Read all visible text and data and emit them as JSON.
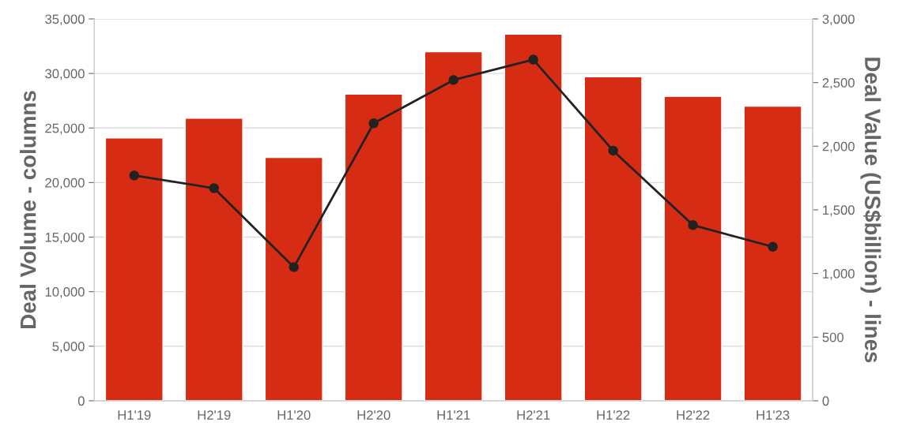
{
  "chart_data": {
    "type": "bar",
    "categories": [
      "H1'19",
      "H2'19",
      "H1'20",
      "H2'20",
      "H1'21",
      "H2'21",
      "H1'22",
      "H2'22",
      "H1'23"
    ],
    "series": [
      {
        "type": "bar",
        "color": "#d62c14",
        "values": [
          24100,
          25900,
          22300,
          28100,
          32000,
          33600,
          29700,
          27900,
          27000
        ]
      },
      {
        "type": "line",
        "axis": "y2",
        "color": "#222222",
        "marker": "circle",
        "line_style": "solid",
        "values": [
          1770,
          1670,
          1050,
          2180,
          2520,
          2680,
          1965,
          1380,
          1210
        ]
      }
    ],
    "ylabel": "Deal Volume - columns",
    "y2label": "Deal Value (US$billion) - lines",
    "ylim": [
      0,
      35000
    ],
    "yticks": [
      {
        "value": 0,
        "label": "0"
      },
      {
        "value": 5000,
        "label": "5,000"
      },
      {
        "value": 10000,
        "label": "10,000"
      },
      {
        "value": 15000,
        "label": "15,000"
      },
      {
        "value": 20000,
        "label": "20,000"
      },
      {
        "value": 25000,
        "label": "25,000"
      },
      {
        "value": 30000,
        "label": "30,000"
      },
      {
        "value": 35000,
        "label": "35,000"
      }
    ],
    "y2lim": [
      0,
      3000
    ],
    "y2ticks": [
      {
        "value": 0,
        "label": "0"
      },
      {
        "value": 500,
        "label": "500"
      },
      {
        "value": 1000,
        "label": "1,000"
      },
      {
        "value": 1500,
        "label": "1,500"
      },
      {
        "value": 2000,
        "label": "2,000"
      },
      {
        "value": 2500,
        "label": "2,500"
      },
      {
        "value": 3000,
        "label": "3,000"
      }
    ],
    "grid": "y"
  }
}
